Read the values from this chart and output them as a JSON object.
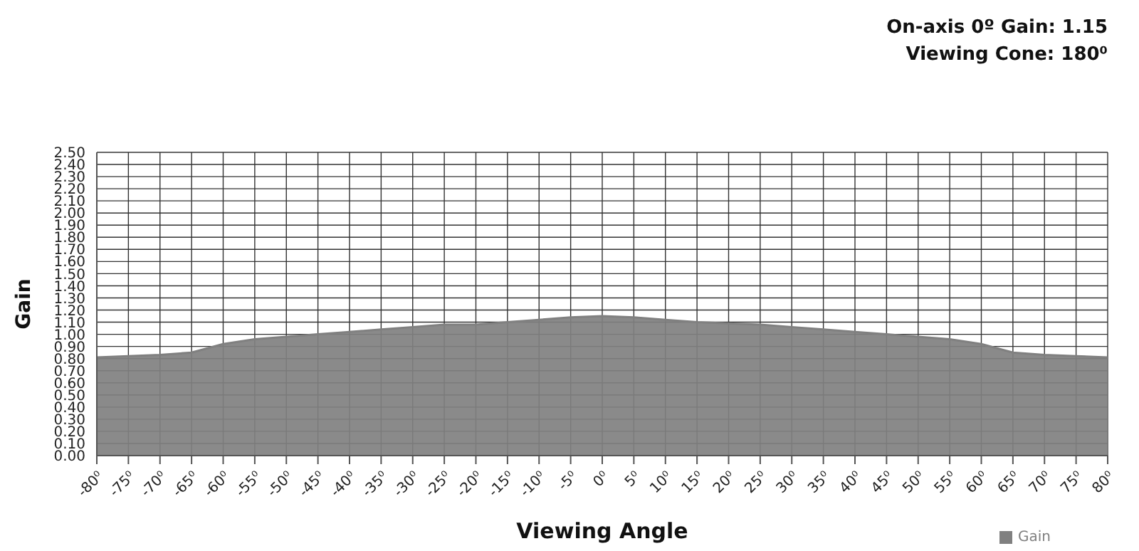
{
  "chart_data": {
    "type": "area",
    "xlabel": "Viewing Angle",
    "ylabel": "Gain",
    "annotations": [
      "On-axis 0º Gain: 1.15",
      "Viewing Cone: 180⁰"
    ],
    "categories": [
      "-80⁰",
      "-75⁰",
      "-70⁰",
      "-65⁰",
      "-60⁰",
      "-55⁰",
      "-50⁰",
      "-45⁰",
      "-40⁰",
      "-35⁰",
      "-30⁰",
      "-25⁰",
      "-20⁰",
      "-15⁰",
      "-10⁰",
      "-5⁰",
      "0⁰",
      "5⁰",
      "10⁰",
      "15⁰",
      "20⁰",
      "25⁰",
      "30⁰",
      "35⁰",
      "40⁰",
      "45⁰",
      "50⁰",
      "55⁰",
      "60⁰",
      "65⁰",
      "70⁰",
      "75⁰",
      "80⁰"
    ],
    "series": [
      {
        "name": "Gain",
        "color": "#808080",
        "values": [
          0.81,
          0.82,
          0.83,
          0.85,
          0.92,
          0.96,
          0.98,
          1.0,
          1.02,
          1.04,
          1.06,
          1.08,
          1.08,
          1.1,
          1.12,
          1.14,
          1.15,
          1.14,
          1.12,
          1.1,
          1.09,
          1.08,
          1.06,
          1.04,
          1.02,
          1.0,
          0.98,
          0.96,
          0.92,
          0.85,
          0.83,
          0.82,
          0.81
        ]
      }
    ],
    "ylim": [
      0,
      2.5
    ],
    "yticks": [
      {
        "value": 0,
        "label": "0.00"
      },
      {
        "value": 0.1,
        "label": "0.10"
      },
      {
        "value": 0.2,
        "label": "0.20"
      },
      {
        "value": 0.3,
        "label": "0.30"
      },
      {
        "value": 0.4,
        "label": "0.40"
      },
      {
        "value": 0.5,
        "label": "0.50"
      },
      {
        "value": 0.6,
        "label": "0.60"
      },
      {
        "value": 0.7,
        "label": "0.70"
      },
      {
        "value": 0.8,
        "label": "0.80"
      },
      {
        "value": 0.9,
        "label": "0.90"
      },
      {
        "value": 1,
        "label": "1.00"
      },
      {
        "value": 1.1,
        "label": "1.10"
      },
      {
        "value": 1.2,
        "label": "1.20"
      },
      {
        "value": 1.3,
        "label": "1.30"
      },
      {
        "value": 1.4,
        "label": "1.40"
      },
      {
        "value": 1.5,
        "label": "1.50"
      },
      {
        "value": 1.6,
        "label": "1.60"
      },
      {
        "value": 1.7,
        "label": "1.70"
      },
      {
        "value": 1.8,
        "label": "1.80"
      },
      {
        "value": 1.9,
        "label": "1.90"
      },
      {
        "value": 2,
        "label": "2.00"
      },
      {
        "value": 2.1,
        "label": "2.10"
      },
      {
        "value": 2.2,
        "label": "2.20"
      },
      {
        "value": 2.3,
        "label": "2.30"
      },
      {
        "value": 2.4,
        "label": "2.40"
      },
      {
        "value": 2.5,
        "label": "2.50"
      }
    ],
    "grid": true,
    "legend": "bottom right"
  }
}
